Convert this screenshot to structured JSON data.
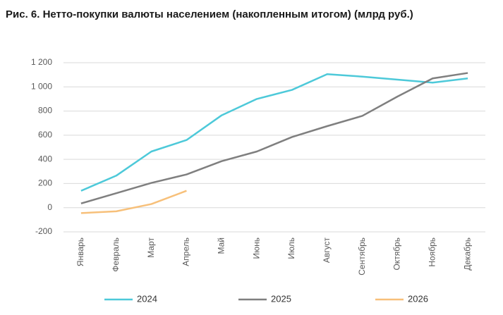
{
  "chart_data": {
    "type": "line",
    "title": "Рис. 6. Нетто-покупки валюты населением (накопленным итогом) (млрд руб.)",
    "categories": [
      "Январь",
      "Февраль",
      "Март",
      "Апрель",
      "Май",
      "Июнь",
      "Июль",
      "Август",
      "Сентябрь",
      "Октябрь",
      "Ноябрь",
      "Декабрь"
    ],
    "series": [
      {
        "name": "2024",
        "color": "#4dc9d9",
        "values": [
          140,
          265,
          465,
          560,
          765,
          900,
          975,
          1105,
          1085,
          1060,
          1035,
          1070
        ]
      },
      {
        "name": "2025",
        "color": "#7f7f7f",
        "values": [
          35,
          120,
          205,
          275,
          385,
          465,
          585,
          675,
          760,
          920,
          1070,
          1115
        ]
      },
      {
        "name": "2026",
        "color": "#f7c07a",
        "values": [
          -45,
          -30,
          30,
          140,
          null,
          null,
          null,
          null,
          null,
          null,
          null,
          null
        ]
      }
    ],
    "ylim": [
      -200,
      1200
    ],
    "yticks": [
      -200,
      0,
      200,
      400,
      600,
      800,
      {
        "value": 1000,
        "label": "1 000"
      },
      {
        "value": 1200,
        "label": "1 200"
      }
    ],
    "grid": true,
    "legend": "bottom"
  }
}
